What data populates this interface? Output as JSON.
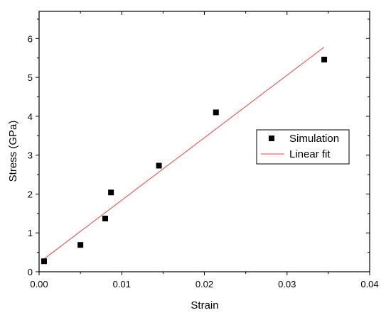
{
  "chart_data": {
    "type": "scatter",
    "xlabel": "Strain",
    "ylabel": "Stress (GPa)",
    "xlim": [
      0,
      0.04
    ],
    "ylim": [
      0,
      6.7
    ],
    "xticks": [
      0,
      0.01,
      0.02,
      0.03,
      0.04
    ],
    "xtick_labels": [
      "0.00",
      "0.01",
      "0.02",
      "0.03",
      "0.04"
    ],
    "yticks": [
      0,
      1,
      2,
      3,
      4,
      5,
      6
    ],
    "ytick_labels": [
      "0",
      "1",
      "2",
      "3",
      "4",
      "5",
      "6"
    ],
    "grid": false,
    "legend_position": "right",
    "series": [
      {
        "name": "Simulation",
        "marker": "square",
        "color": "#000000",
        "x": [
          0.0006,
          0.005,
          0.008,
          0.0087,
          0.0145,
          0.0214,
          0.0345
        ],
        "y": [
          0.27,
          0.69,
          1.37,
          2.04,
          2.73,
          4.1,
          5.46
        ]
      },
      {
        "name": "Linear fit",
        "line": true,
        "color": "#e8433a",
        "x": [
          0.0006,
          0.0345
        ],
        "y": [
          0.33,
          5.78
        ]
      }
    ]
  }
}
